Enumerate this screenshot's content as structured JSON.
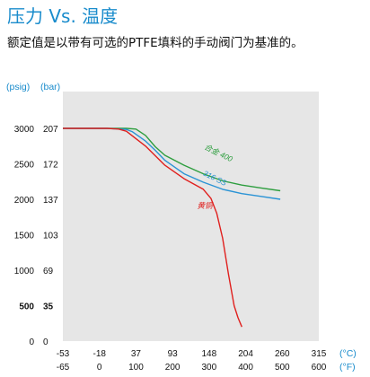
{
  "title": "压力 Vs. 温度",
  "subtitle": "额定值是以带有可选的PTFE填料的手动阀门为基准的。",
  "chart_data": {
    "type": "line",
    "y_units": [
      "(psig)",
      "(bar)"
    ],
    "x_units": [
      "(°C)",
      "(°F)"
    ],
    "psig_ticks": [
      "3000",
      "2500",
      "2000",
      "1500",
      "1000",
      "500",
      "0"
    ],
    "bar_ticks": [
      "207",
      "172",
      "137",
      "103",
      "69",
      "35",
      "0"
    ],
    "bold_psig_tick": "500",
    "bold_bar_tick": "35",
    "c_ticks": [
      "-53",
      "-18",
      "37",
      "93",
      "148",
      "204",
      "260",
      "315"
    ],
    "f_ticks": [
      "-65",
      "0",
      "100",
      "200",
      "300",
      "400",
      "500",
      "600"
    ],
    "xlim_f": [
      -65,
      600
    ],
    "ylim_psig": [
      0,
      3000
    ],
    "grid": false,
    "series": [
      {
        "name": "合金 400",
        "color": "#2e9e3f",
        "x": [
          -65,
          100,
          125,
          150,
          175,
          200,
          250,
          300,
          350,
          400,
          450,
          500
        ],
        "y": [
          3000,
          3000,
          2990,
          2900,
          2740,
          2620,
          2480,
          2360,
          2260,
          2200,
          2160,
          2120
        ]
      },
      {
        "name": "316 SS",
        "color": "#2a93d5",
        "x": [
          -65,
          50,
          100,
          115,
          150,
          175,
          200,
          250,
          300,
          350,
          400,
          450,
          500
        ],
        "y": [
          3000,
          3000,
          2985,
          2955,
          2820,
          2690,
          2550,
          2360,
          2240,
          2140,
          2080,
          2040,
          2000
        ]
      },
      {
        "name": "黄铜",
        "color": "#e0201e",
        "x": [
          -65,
          50,
          80,
          100,
          150,
          200,
          250,
          300,
          320,
          335,
          350,
          365,
          380,
          390,
          400
        ],
        "y": [
          3000,
          3000,
          2990,
          2960,
          2750,
          2480,
          2290,
          2140,
          2010,
          1800,
          1450,
          950,
          500,
          330,
          200
        ]
      }
    ]
  }
}
